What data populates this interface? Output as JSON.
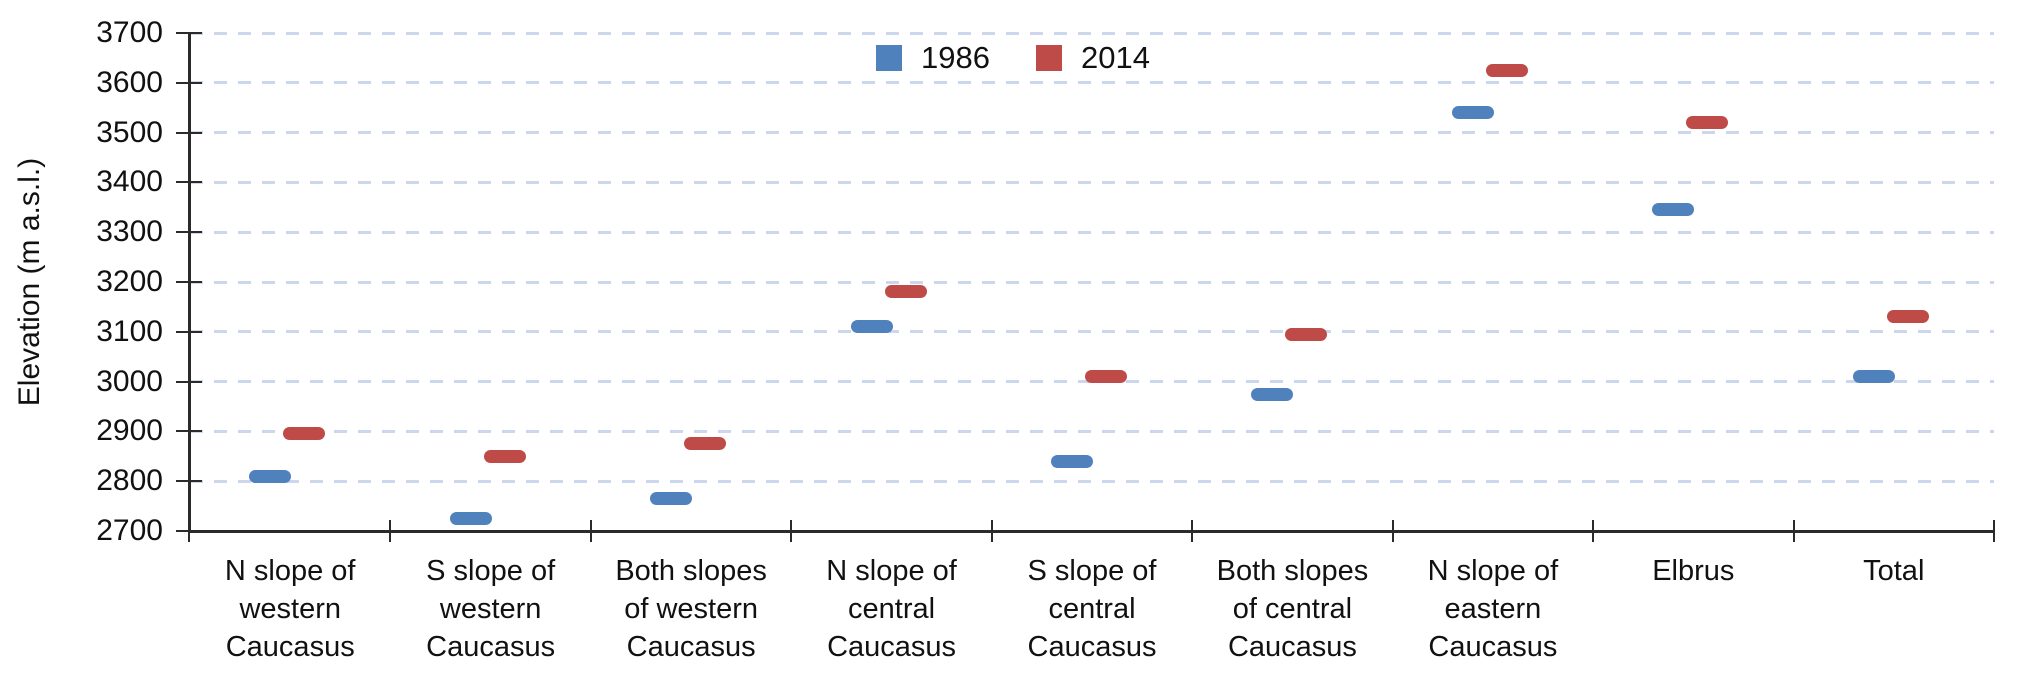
{
  "chart_data": {
    "type": "scatter",
    "title": "",
    "xlabel": "",
    "ylabel": "Elevation (m a.s.l.)",
    "ylim": [
      2700,
      3700
    ],
    "ytick_step": 100,
    "grid": "dashed-horizontal",
    "legend_position": "top-center",
    "categories": [
      [
        "N slope of",
        "western",
        "Caucasus"
      ],
      [
        "S slope of",
        "western",
        "Caucasus"
      ],
      [
        "Both slopes",
        "of western",
        "Caucasus"
      ],
      [
        "N slope of",
        "central",
        "Caucasus"
      ],
      [
        "S slope of",
        "central",
        "Caucasus"
      ],
      [
        "Both slopes",
        "of central",
        "Caucasus"
      ],
      [
        "N slope of",
        "eastern",
        "Caucasus"
      ],
      [
        "Elbrus"
      ],
      [
        "Total"
      ]
    ],
    "series": [
      {
        "name": "1986",
        "color": "#4f81bd",
        "values": [
          2810,
          2725,
          2765,
          3110,
          2840,
          2975,
          3540,
          3345,
          3010
        ]
      },
      {
        "name": "2014",
        "color": "#bf4b48",
        "values": [
          2895,
          2850,
          2875,
          3180,
          3010,
          3095,
          3625,
          3520,
          3130
        ]
      }
    ]
  },
  "colors": {
    "axis": "#2b2b2b",
    "gridline": "#ccd7ee",
    "text": "#111111",
    "series_1986": "#4f81bd",
    "series_2014": "#bf4b48"
  }
}
